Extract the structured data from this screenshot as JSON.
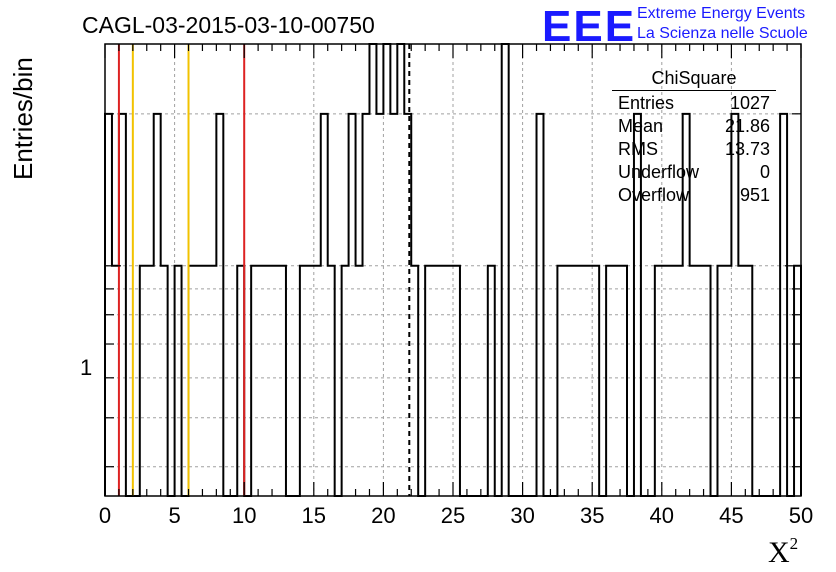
{
  "header": {
    "title": "CAGL-03-2015-03-10-00750",
    "logo": "EEE",
    "logo_line1": "Extreme Energy Events",
    "logo_line2": "La Scienza nelle Scuole"
  },
  "stats": {
    "title": "ChiSquare",
    "rows": [
      {
        "label": "Entries",
        "value": "1027"
      },
      {
        "label": "Mean",
        "value": "21.86"
      },
      {
        "label": "RMS",
        "value": "13.73"
      },
      {
        "label": "Underflow",
        "value": "0"
      },
      {
        "label": "Overflow",
        "value": "951"
      }
    ]
  },
  "colors": {
    "hist": "#000000",
    "red_line": "#dd2222",
    "yellow_line": "#f2c200",
    "grid": "#a0a0a0"
  },
  "chart_data": {
    "type": "bar",
    "xlabel": "X²",
    "ylabel": "Entries/bin",
    "xlim": [
      0,
      50
    ],
    "ylog": true,
    "ylim": [
      0.35,
      2.75
    ],
    "grid": true,
    "bin_width": 0.5,
    "xticks": [
      0,
      5,
      10,
      15,
      20,
      25,
      30,
      35,
      40,
      45,
      50
    ],
    "ytick_labels": [
      "1"
    ],
    "counts": [
      2,
      1,
      2,
      0,
      0,
      1,
      1,
      2,
      1,
      0,
      1,
      0,
      1,
      1,
      1,
      1,
      2,
      0,
      0,
      1,
      0,
      1,
      1,
      1,
      1,
      1,
      0,
      0,
      1,
      1,
      1,
      2,
      1,
      0,
      1,
      2,
      1,
      2,
      3,
      2,
      3,
      2,
      3,
      2,
      1,
      0,
      1,
      1,
      1,
      1,
      1,
      0,
      0,
      0,
      0,
      1,
      0,
      3,
      0,
      0,
      0,
      0,
      2,
      0,
      0,
      1,
      1,
      1,
      1,
      1,
      1,
      0,
      1,
      1,
      1,
      0,
      2,
      0,
      0,
      1,
      1,
      1,
      1,
      2,
      1,
      1,
      1,
      0,
      1,
      1,
      2,
      1,
      1,
      0,
      0,
      0,
      0,
      2,
      0,
      1
    ],
    "vertical_lines": [
      {
        "x": 1,
        "color": "red"
      },
      {
        "x": 2,
        "color": "yellow"
      },
      {
        "x": 6,
        "color": "yellow"
      },
      {
        "x": 10,
        "color": "red"
      },
      {
        "x": 21.86,
        "color": "black-dashed"
      }
    ]
  }
}
